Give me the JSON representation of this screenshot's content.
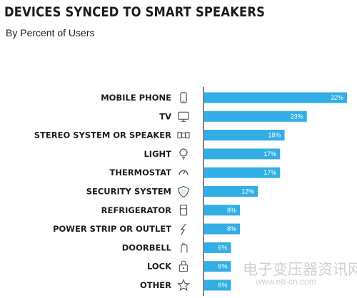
{
  "title": "DEVICES SYNCED TO SMART SPEAKERS",
  "subtitle": "By  Percent of Users",
  "watermark": {
    "text": "电子变压器资讯网",
    "url": "www.ett-cn.com"
  },
  "colors": {
    "bar": "#33aee4",
    "axis": "#333333",
    "icon": "#555555"
  },
  "chart_data": {
    "type": "bar",
    "orientation": "horizontal",
    "title": "DEVICES SYNCED TO SMART SPEAKERS",
    "subtitle": "By  Percent of Users",
    "categories": [
      "MOBILE PHONE",
      "TV",
      "STEREO SYSTEM OR SPEAKER",
      "LIGHT",
      "THERMOSTAT",
      "SECURITY SYSTEM",
      "REFRIGERATOR",
      "POWER STRIP OR OUTLET",
      "DOORBELL",
      "LOCK",
      "OTHER"
    ],
    "values": [
      32,
      23,
      18,
      17,
      17,
      12,
      8,
      8,
      6,
      6,
      6
    ],
    "value_labels": [
      "32%",
      "23%",
      "18%",
      "17%",
      "17%",
      "12%",
      "8%",
      "8%",
      "6%",
      "6%",
      "6%"
    ],
    "icons": [
      "mobile-phone-icon",
      "tv-icon",
      "speaker-icon",
      "light-bulb-icon",
      "thermostat-icon",
      "shield-icon",
      "refrigerator-icon",
      "plug-icon",
      "doorbell-icon",
      "lock-icon",
      "star-icon"
    ],
    "xlim": [
      0,
      32
    ],
    "grid": false,
    "legend": "none"
  }
}
